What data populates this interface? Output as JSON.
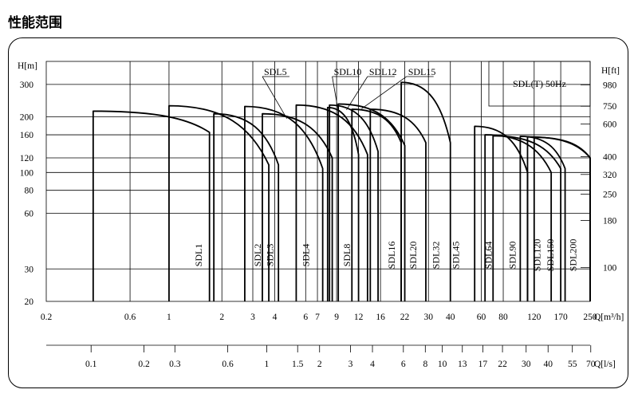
{
  "page_title": "性能范围",
  "chart_data": {
    "type": "line",
    "title": "SDL(T) 50Hz",
    "xlabel": "Q[m³/h]",
    "x2label": "Q[l/s]",
    "ylabel": "H[m]",
    "y2label": "H[ft]",
    "xlim": [
      0.2,
      250
    ],
    "ylim": [
      20,
      400
    ],
    "x_scale": "log",
    "y_scale": "log",
    "grid": true,
    "x_ticks": [
      0.2,
      0.6,
      1,
      2,
      3,
      4,
      6,
      7,
      9,
      12,
      16,
      22,
      30,
      40,
      60,
      80,
      120,
      170,
      250
    ],
    "x_tick_labels": [
      "0.2",
      "0.6",
      "1",
      "2",
      "3",
      "4",
      "6",
      "7",
      "9",
      "12",
      "16",
      "22",
      "30",
      "40",
      "60",
      "80",
      "120",
      "170",
      "250"
    ],
    "y_ticks": [
      20,
      30,
      60,
      80,
      100,
      120,
      160,
      200,
      300
    ],
    "y_tick_labels": [
      "20",
      "30",
      "60",
      "80",
      "100",
      "120",
      "160",
      "200",
      "300"
    ],
    "x2_ticks": [
      0.1,
      0.2,
      0.3,
      0.6,
      1,
      1.5,
      2,
      3,
      4,
      6,
      8,
      10,
      13,
      17,
      22,
      30,
      40,
      55,
      70
    ],
    "x2_tick_labels": [
      "0.1",
      "0.2",
      "0.3",
      "0.6",
      "1",
      "1.5",
      "2",
      "3",
      "4",
      "6",
      "8",
      "10",
      "13",
      "17",
      "22",
      "30",
      "40",
      "55",
      "70"
    ],
    "y2_ticks": [
      100,
      180,
      250,
      320,
      400,
      600,
      750,
      980
    ],
    "y2_tick_labels": [
      "100",
      "180",
      "250",
      "320",
      "400",
      "600",
      "750",
      "980"
    ],
    "series": [
      {
        "name": "SDL1",
        "qmin": 0.37,
        "qmax": 1.7,
        "hmax": 215,
        "hend": 165,
        "label_x": 1.47,
        "curve_labeled": false
      },
      {
        "name": "SDL2",
        "qmin": 1.0,
        "qmax": 3.7,
        "hmax": 230,
        "hend": 110,
        "label_x": 3.2,
        "curve_labeled": false
      },
      {
        "name": "SDL3",
        "qmin": 1.8,
        "qmax": 4.2,
        "hmax": 208,
        "hend": 110,
        "label_x": 3.75,
        "curve_labeled": false
      },
      {
        "name": "SDL4",
        "qmin": 2.7,
        "qmax": 7.5,
        "hmax": 228,
        "hend": 105,
        "label_x": 6.0,
        "curve_labeled": false
      },
      {
        "name": "SDL5",
        "qmin": 3.4,
        "qmax": 8.5,
        "hmax": 208,
        "hend": 120,
        "label_x": 3.4,
        "curve_labeled": true
      },
      {
        "name": "SDL8",
        "qmin": 5.3,
        "qmax": 13.5,
        "hmax": 232,
        "hend": 125,
        "label_x": 10.3,
        "curve_labeled": false
      },
      {
        "name": "SDL10",
        "qmin": 8.0,
        "qmax": 12,
        "hmax": 225,
        "hend": 125,
        "label_x": 8.5,
        "curve_labeled": true
      },
      {
        "name": "SDL12",
        "qmin": 8.2,
        "qmax": 15.5,
        "hmax": 232,
        "hend": 130,
        "label_x": 13.5,
        "curve_labeled": true
      },
      {
        "name": "SDL15",
        "qmin": 9.2,
        "qmax": 22,
        "hmax": 235,
        "hend": 140,
        "label_x": 22.5,
        "curve_labeled": true
      },
      {
        "name": "SDL16",
        "qmin": 11,
        "qmax": 21,
        "hmax": 220,
        "hend": 145,
        "label_x": 18.5,
        "curve_labeled": false
      },
      {
        "name": "SDL20",
        "qmin": 14,
        "qmax": 29,
        "hmax": 220,
        "hend": 145,
        "label_x": 24.5,
        "curve_labeled": false
      },
      {
        "name": "SDL32",
        "qmin": 21,
        "qmax": 40,
        "hmax": 308,
        "hend": 145,
        "label_x": 33,
        "curve_labeled": false
      },
      {
        "name": "SDL45",
        "qmin": 55,
        "qmax": 110,
        "hmax": 178,
        "hend": 100,
        "label_x": 43,
        "curve_labeled": false
      },
      {
        "name": "SDL64",
        "qmin": 63,
        "qmax": 150,
        "hmax": 160,
        "hend": 100,
        "label_x": 66,
        "curve_labeled": false
      },
      {
        "name": "SDL90",
        "qmin": 70,
        "qmax": 170,
        "hmax": 158,
        "hend": 105,
        "label_x": 90,
        "curve_labeled": false
      },
      {
        "name": "SDL120",
        "qmin": 100,
        "qmax": 180,
        "hmax": 157,
        "hend": 105,
        "label_x": 125,
        "curve_labeled": false
      },
      {
        "name": "SDL150",
        "qmin": 110,
        "qmax": 250,
        "hmax": 156,
        "hend": 120,
        "label_x": 148,
        "curve_labeled": false
      },
      {
        "name": "SDL200",
        "qmin": 120,
        "qmax": 250,
        "hmax": 155,
        "hend": 120,
        "label_x": 200,
        "curve_labeled": false
      }
    ]
  }
}
